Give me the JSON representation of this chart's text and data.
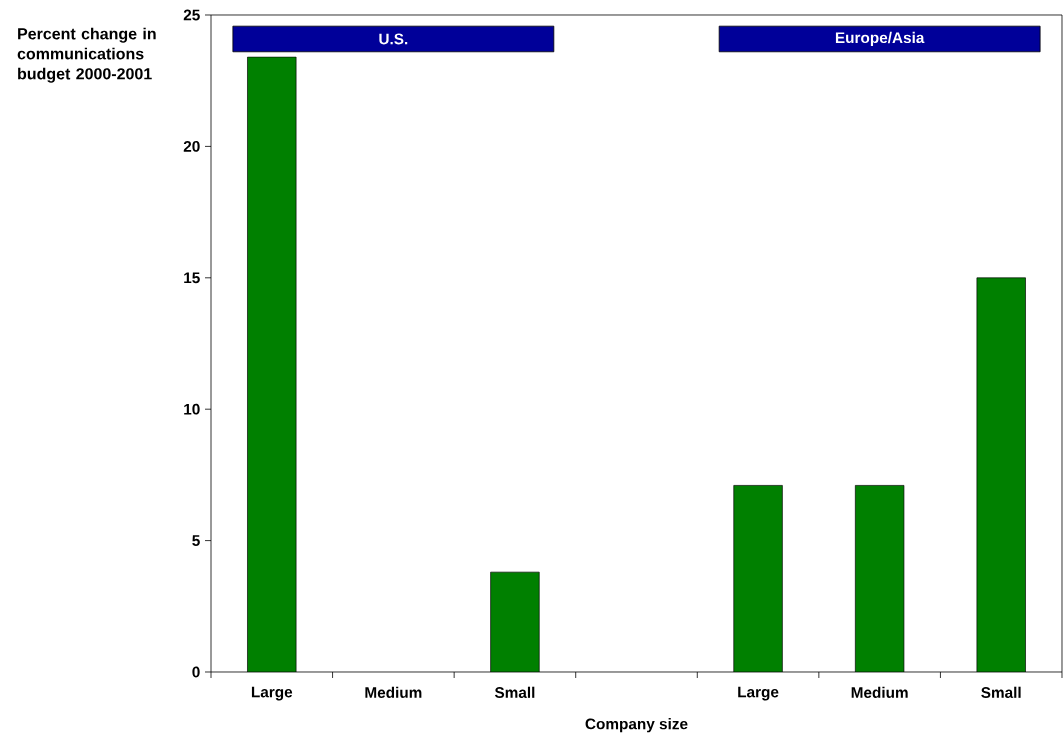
{
  "chart_data": {
    "type": "bar",
    "ylabel": "Percent change in communications budget 2000-2001",
    "xlabel": "Company size",
    "categories": [
      "Large",
      "Medium",
      "Small",
      null,
      "Large",
      "Medium",
      "Small"
    ],
    "values": [
      23.4,
      null,
      3.8,
      null,
      7.1,
      7.1,
      15
    ],
    "color": "#008000",
    "ylim": [
      0,
      25
    ],
    "yticks": [
      0,
      5,
      10,
      15,
      20,
      25
    ],
    "grid": false,
    "annotations": [
      "U.S.",
      "Europe/Asia"
    ]
  }
}
